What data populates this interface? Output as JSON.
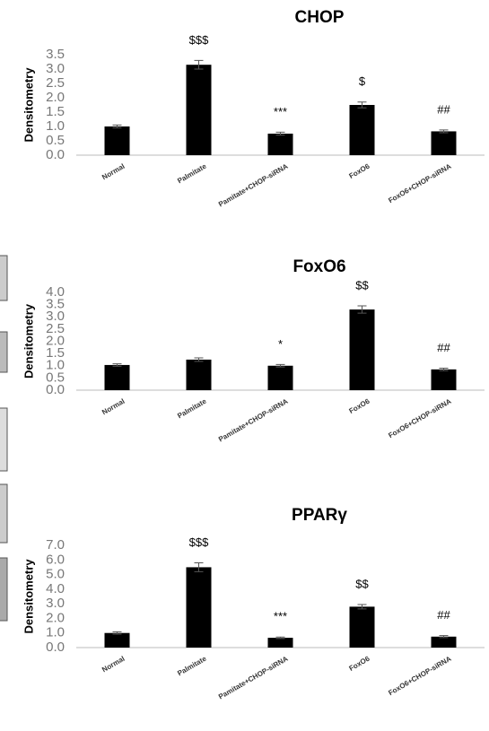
{
  "chart_data": [
    {
      "type": "bar",
      "title": "CHOP",
      "y_label": "Densitometry",
      "categories": [
        "Normal",
        "Palmitate",
        "Pamitate+CHOP-siRNA",
        "FoxO6",
        "FoxO6+CHOP-siRNA"
      ],
      "values": [
        1.0,
        3.15,
        0.75,
        1.75,
        0.83
      ],
      "errors": [
        0.05,
        0.15,
        0.05,
        0.1,
        0.05
      ],
      "annotations": [
        null,
        "$$$",
        "***",
        "$",
        "##"
      ],
      "color": "#000000",
      "ylim": [
        0,
        3.5
      ],
      "yticks": [
        {
          "value": 0,
          "label": "0.0"
        },
        0.5,
        {
          "value": 1,
          "label": "1.0"
        },
        1.5,
        {
          "value": 2,
          "label": "2.0"
        },
        2.5,
        {
          "value": 3,
          "label": "3.0"
        },
        3.5
      ]
    },
    {
      "type": "bar",
      "title": "FoxO6",
      "y_label": "Densitometry",
      "categories": [
        "Normal",
        "Palmitate",
        "Pamitate+CHOP-siRNA",
        "FoxO6",
        "FoxO6+CHOP-siRNA"
      ],
      "values": [
        1.03,
        1.25,
        1.0,
        3.3,
        0.85
      ],
      "errors": [
        0.05,
        0.07,
        0.05,
        0.15,
        0.05
      ],
      "annotations": [
        null,
        null,
        "*",
        "$$",
        "##"
      ],
      "color": "#000000",
      "ylim": [
        0,
        4
      ],
      "yticks": [
        {
          "value": 0,
          "label": "0.0"
        },
        0.5,
        {
          "value": 1,
          "label": "1.0"
        },
        1.5,
        {
          "value": 2,
          "label": "2.0"
        },
        2.5,
        {
          "value": 3,
          "label": "3.0"
        },
        3.5,
        {
          "value": 4,
          "label": "4.0"
        }
      ]
    },
    {
      "type": "bar",
      "title": "PPARγ",
      "y_label": "Densitometry",
      "categories": [
        "Normal",
        "Palmitate",
        "Pamitate+CHOP-siRNA",
        "FoxO6",
        "FoxO6+CHOP-siRNA"
      ],
      "values": [
        1.0,
        5.5,
        0.67,
        2.8,
        0.75
      ],
      "errors": [
        0.08,
        0.3,
        0.05,
        0.15,
        0.07
      ],
      "annotations": [
        null,
        "$$$",
        "***",
        "$$",
        "##"
      ],
      "color": "#000000",
      "ylim": [
        0,
        7
      ],
      "yticks": [
        {
          "value": 0,
          "label": "0.0"
        },
        {
          "value": 1,
          "label": "1.0"
        },
        {
          "value": 2,
          "label": "2.0"
        },
        {
          "value": 3,
          "label": "3.0"
        },
        {
          "value": 4,
          "label": "4.0"
        },
        {
          "value": 5,
          "label": "5.0"
        },
        {
          "value": 6,
          "label": "6.0"
        },
        {
          "value": 7,
          "label": "7.0"
        }
      ]
    }
  ]
}
